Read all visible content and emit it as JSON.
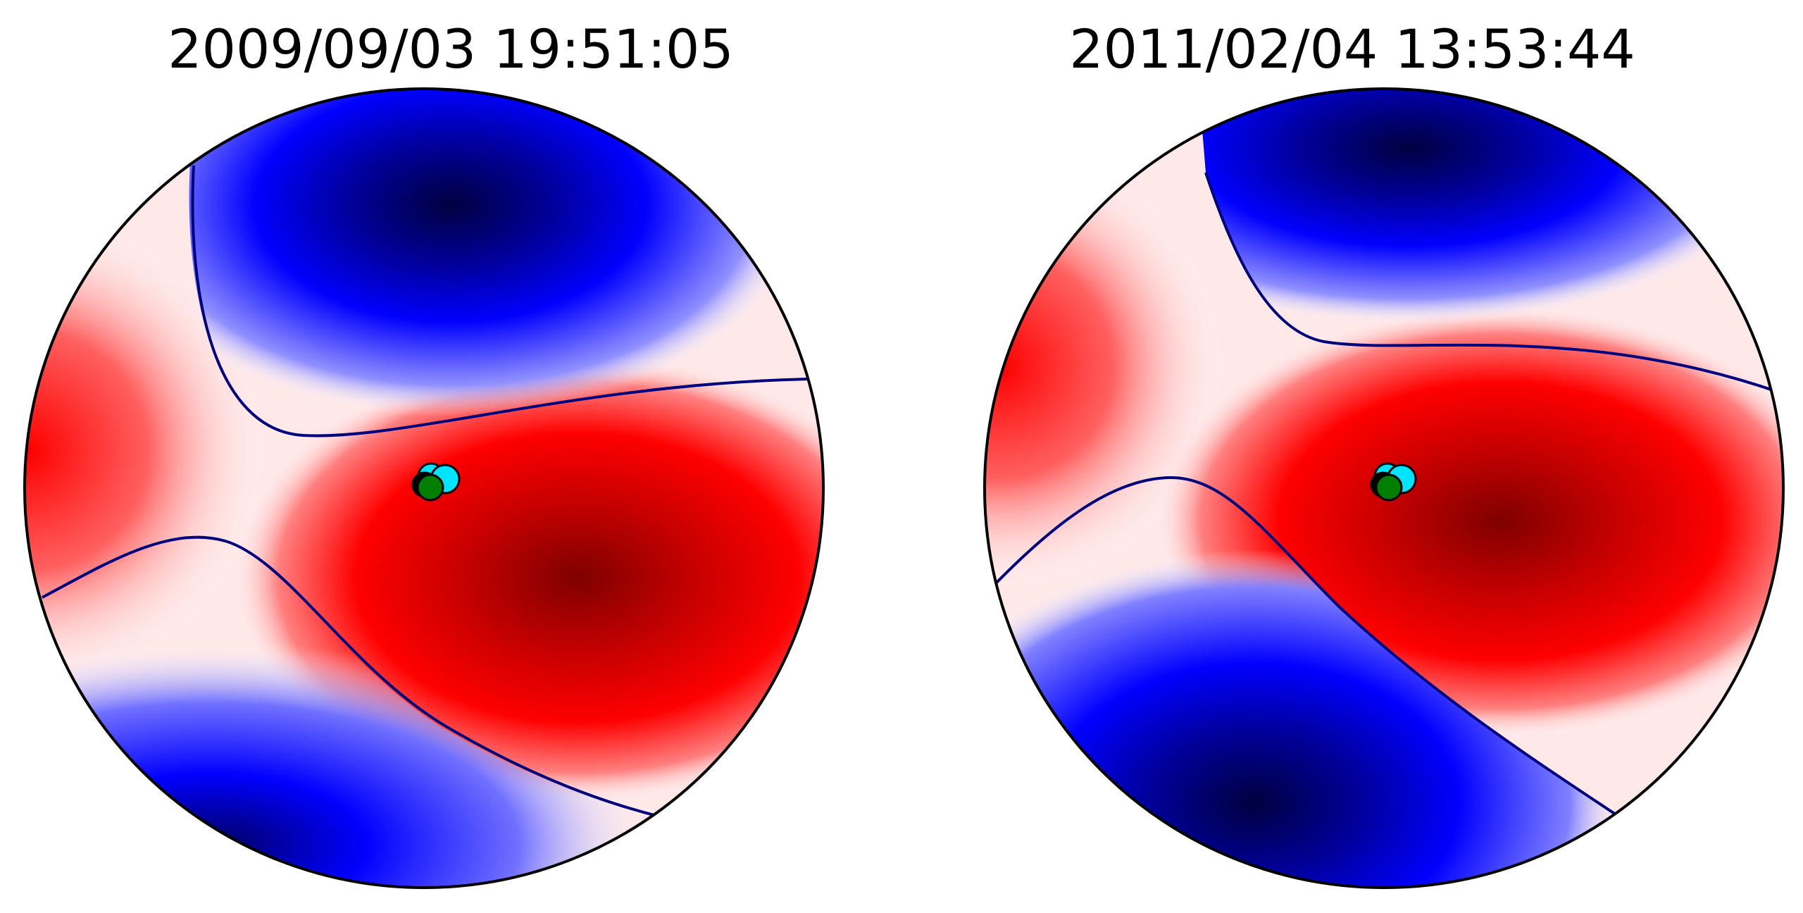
{
  "panels": [
    {
      "title": "2009/09/03 19:51:05",
      "colors": {
        "positive": "#ff0000",
        "negative": "#0000ff",
        "dark_positive": "#7f0000",
        "dark_negative": "#000040",
        "neutral": "#ffffff",
        "contour": "#00007f"
      },
      "markers": [
        {
          "name": "cyan-marker",
          "color": "#00e5ff"
        },
        {
          "name": "black-marker",
          "color": "#000000"
        },
        {
          "name": "green-marker",
          "color": "#007f00"
        }
      ]
    },
    {
      "title": "2011/02/04 13:53:44",
      "colors": {
        "positive": "#ff0000",
        "negative": "#0000ff",
        "dark_positive": "#7f0000",
        "dark_negative": "#000040",
        "neutral": "#ffffff",
        "contour": "#00007f"
      },
      "markers": [
        {
          "name": "cyan-marker",
          "color": "#00e5ff"
        },
        {
          "name": "black-marker",
          "color": "#000000"
        },
        {
          "name": "green-marker",
          "color": "#007f00"
        }
      ]
    }
  ]
}
